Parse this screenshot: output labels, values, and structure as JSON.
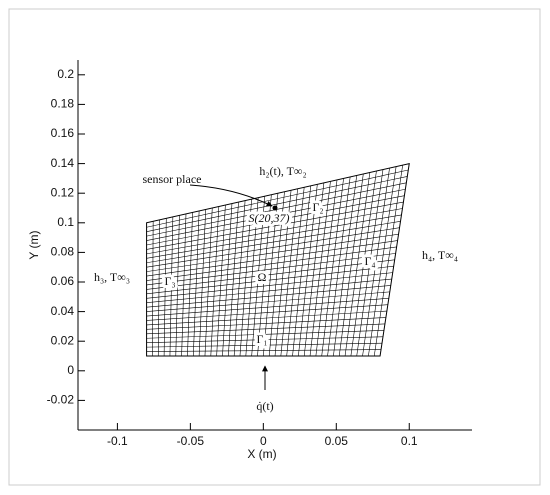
{
  "chart_data": {
    "type": "mesh",
    "x_label": "X (m)",
    "y_label": "Y (m)",
    "xlim": [
      -0.127,
      0.143
    ],
    "ylim": [
      -0.04,
      0.21
    ],
    "xticks": [
      -0.1,
      -0.05,
      0,
      0.05,
      0.1
    ],
    "yticks": [
      -0.02,
      0,
      0.02,
      0.04,
      0.06,
      0.08,
      0.1,
      0.12,
      0.14,
      0.16,
      0.18,
      0.2
    ],
    "domain": {
      "x": [
        -0.08,
        0.08,
        0.1,
        -0.08
      ],
      "y": [
        0.01,
        0.01,
        0.14,
        0.1
      ],
      "color": "#000000"
    },
    "sensor": {
      "name": "sensor place",
      "label": "S(20,37)",
      "x": 0.008,
      "y": 0.11
    },
    "annotations": [
      "Γ₁",
      "Γ₂",
      "Γ₃",
      "Γ₄",
      "Ω",
      "h₂(t), T∞₂",
      "h₃, T∞₃",
      "h₄, T∞₄",
      "q̇(t)"
    ]
  }
}
